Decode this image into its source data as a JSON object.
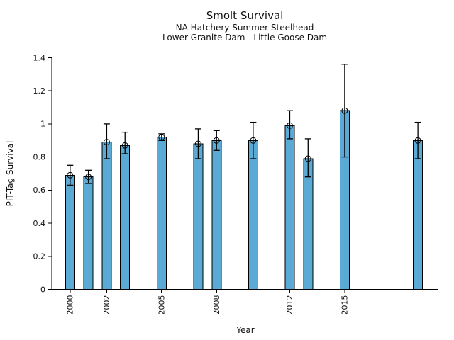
{
  "chart_data": {
    "type": "bar",
    "title": "Smolt Survival",
    "subtitle1": "NA Hatchery Summer Steelhead",
    "subtitle2": "Lower Granite Dam - Little Goose Dam",
    "xlabel": "Year",
    "ylabel": "PIT-Tag Survival",
    "ylim": [
      0,
      1.4
    ],
    "xlim": [
      1999.0,
      2020.1
    ],
    "yticks": [
      0,
      0.2,
      0.4,
      0.6,
      0.8,
      1.0,
      1.2,
      1.4
    ],
    "ytick_labels": [
      "0",
      "0.2",
      "0.4",
      "0.6",
      "0.8",
      "1",
      "1.2",
      "1.4"
    ],
    "xticks": [
      2000,
      2002,
      2005,
      2008,
      2012,
      2015
    ],
    "xtick_labels": [
      "2000",
      "2002",
      "2005",
      "2008",
      "2012",
      "2015"
    ],
    "grid": false,
    "legend": "none",
    "bar_color": "#5aaad5",
    "bar_edge_color": "#000000",
    "errorbar_color": "#000000",
    "marker": "open-circle",
    "series": [
      {
        "name": "PIT-Tag Survival",
        "points": [
          {
            "year": 2000,
            "value": 0.69,
            "err_low": 0.63,
            "err_high": 0.75
          },
          {
            "year": 2001,
            "value": 0.68,
            "err_low": 0.64,
            "err_high": 0.72
          },
          {
            "year": 2002,
            "value": 0.89,
            "err_low": 0.79,
            "err_high": 1.0
          },
          {
            "year": 2003,
            "value": 0.87,
            "err_low": 0.82,
            "err_high": 0.95
          },
          {
            "year": 2005,
            "value": 0.92,
            "err_low": 0.9,
            "err_high": 0.94
          },
          {
            "year": 2007,
            "value": 0.88,
            "err_low": 0.79,
            "err_high": 0.97
          },
          {
            "year": 2008,
            "value": 0.9,
            "err_low": 0.84,
            "err_high": 0.96
          },
          {
            "year": 2010,
            "value": 0.9,
            "err_low": 0.79,
            "err_high": 1.01
          },
          {
            "year": 2012,
            "value": 0.99,
            "err_low": 0.91,
            "err_high": 1.08
          },
          {
            "year": 2013,
            "value": 0.79,
            "err_low": 0.68,
            "err_high": 0.91
          },
          {
            "year": 2015,
            "value": 1.08,
            "err_low": 0.8,
            "err_high": 1.36
          },
          {
            "year": 2019,
            "value": 0.9,
            "err_low": 0.79,
            "err_high": 1.01
          }
        ]
      }
    ]
  }
}
